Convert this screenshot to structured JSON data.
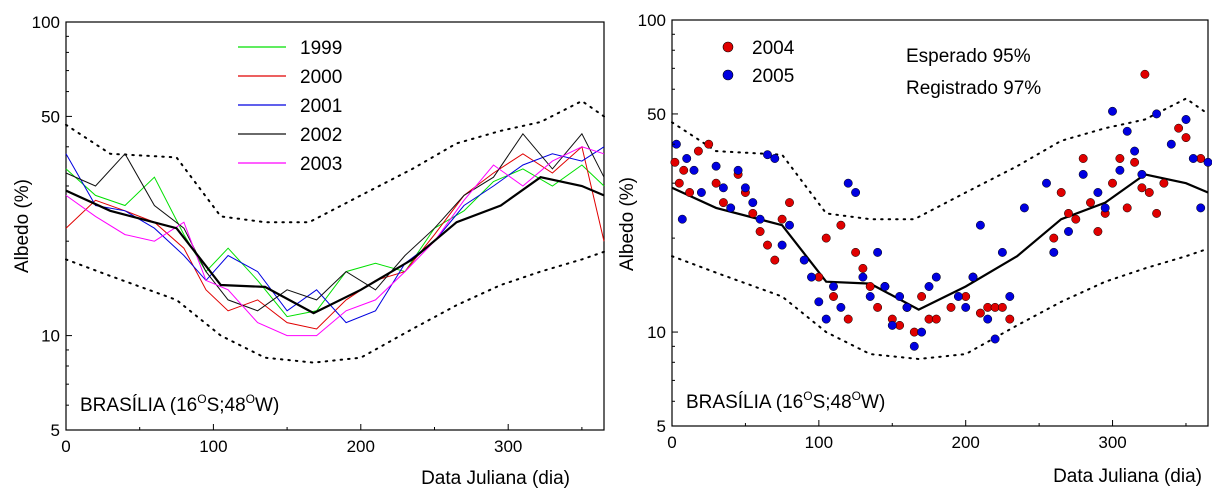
{
  "chart_data": [
    {
      "type": "line",
      "xlabel": "Data Juliana (dia)",
      "ylabel": "Albedo (%)",
      "xlim": [
        0,
        365
      ],
      "ylim": [
        5,
        100
      ],
      "yscale": "log",
      "xticks": [
        0,
        100,
        200,
        300
      ],
      "yticks": [
        5,
        10,
        50,
        100
      ],
      "annotation": {
        "prefix": "BRASÍLIA (16",
        "s1": "O",
        "mid": "S;48",
        "s2": "O",
        "suffix": "W)"
      },
      "legend_position": "top-center",
      "mean_curve": {
        "x": [
          0,
          30,
          75,
          105,
          135,
          168,
          200,
          235,
          265,
          295,
          322,
          350,
          365
        ],
        "y": [
          29,
          25,
          22,
          14.5,
          14.3,
          11.8,
          14,
          17.5,
          23,
          26,
          32,
          30,
          28
        ]
      },
      "envelope_upper": {
        "x": [
          0,
          30,
          75,
          105,
          135,
          165,
          200,
          235,
          265,
          295,
          322,
          350,
          365
        ],
        "y": [
          47,
          38,
          37,
          24,
          23,
          23,
          28,
          34,
          41,
          45,
          48,
          56,
          50
        ]
      },
      "envelope_lower": {
        "x": [
          0,
          30,
          75,
          105,
          135,
          168,
          200,
          235,
          265,
          295,
          322,
          350,
          365
        ],
        "y": [
          17.5,
          15.5,
          13,
          10,
          8.5,
          8.2,
          8.5,
          10.5,
          12.5,
          14.5,
          16,
          17.5,
          18.5
        ]
      },
      "series": [
        {
          "name": "1999",
          "color": "#00e000",
          "x": [
            0,
            20,
            40,
            60,
            80,
            95,
            110,
            130,
            150,
            170,
            190,
            210,
            230,
            250,
            270,
            290,
            310,
            330,
            350,
            365
          ],
          "y": [
            34,
            28,
            26,
            32,
            21,
            16,
            19,
            15,
            11.5,
            12,
            16,
            17,
            16,
            22,
            25,
            31,
            34,
            30,
            35,
            30
          ]
        },
        {
          "name": "2000",
          "color": "#e00000",
          "x": [
            0,
            20,
            40,
            60,
            80,
            95,
            110,
            130,
            150,
            170,
            190,
            210,
            230,
            250,
            270,
            290,
            310,
            330,
            350,
            365
          ],
          "y": [
            22,
            27,
            25,
            23,
            19,
            14,
            12,
            13,
            11,
            10.5,
            13,
            15,
            16,
            21,
            28,
            33,
            38,
            33,
            40,
            20
          ]
        },
        {
          "name": "2001",
          "color": "#0000e0",
          "x": [
            0,
            20,
            40,
            60,
            80,
            95,
            110,
            130,
            150,
            170,
            190,
            210,
            230,
            250,
            270,
            290,
            310,
            330,
            350,
            365
          ],
          "y": [
            38,
            26,
            25,
            22,
            18,
            15,
            18,
            16,
            12,
            14,
            11,
            12,
            17,
            20,
            26,
            30,
            35,
            38,
            36,
            40
          ]
        },
        {
          "name": "2002",
          "color": "#101010",
          "x": [
            0,
            20,
            40,
            60,
            80,
            95,
            110,
            130,
            150,
            170,
            190,
            210,
            230,
            250,
            270,
            290,
            310,
            330,
            350,
            365
          ],
          "y": [
            33,
            30,
            38,
            26,
            22,
            16,
            13,
            12,
            14,
            13,
            16,
            14,
            18,
            22,
            28,
            32,
            44,
            34,
            44,
            32
          ]
        },
        {
          "name": "2003",
          "color": "#ff00ff",
          "x": [
            0,
            20,
            40,
            60,
            80,
            95,
            110,
            130,
            150,
            170,
            190,
            210,
            230,
            250,
            270,
            290,
            310,
            330,
            350,
            365
          ],
          "y": [
            28,
            24,
            21,
            20,
            23,
            15,
            14,
            11,
            10,
            10,
            12,
            13,
            16,
            20,
            27,
            35,
            30,
            36,
            40,
            38
          ]
        }
      ]
    },
    {
      "type": "scatter",
      "xlabel": "Data Juliana (dia)",
      "ylabel": "Albedo (%)",
      "xlim": [
        0,
        365
      ],
      "ylim": [
        5,
        100
      ],
      "yscale": "log",
      "xticks": [
        0,
        100,
        200,
        300
      ],
      "yticks": [
        5,
        10,
        50,
        100
      ],
      "annotation": {
        "prefix": "BRASÍLIA (16",
        "s1": "O",
        "mid": "S;48",
        "s2": "O",
        "suffix": "W)"
      },
      "text_annotations": [
        "Esperado 95%",
        "Registrado 97%"
      ],
      "legend_position": "top-left",
      "mean_curve": {
        "x": [
          0,
          30,
          75,
          105,
          135,
          168,
          200,
          235,
          265,
          295,
          322,
          350,
          365
        ],
        "y": [
          29,
          25,
          22,
          14.5,
          14.3,
          11.8,
          14,
          17.5,
          23,
          26,
          32,
          30,
          28
        ]
      },
      "envelope_upper": {
        "x": [
          0,
          30,
          75,
          105,
          135,
          165,
          200,
          235,
          265,
          295,
          322,
          350,
          365
        ],
        "y": [
          47,
          38,
          37,
          24,
          23,
          23,
          28,
          34,
          41,
          45,
          48,
          56,
          50
        ]
      },
      "envelope_lower": {
        "x": [
          0,
          30,
          75,
          105,
          135,
          168,
          200,
          235,
          265,
          295,
          322,
          350,
          365
        ],
        "y": [
          17.5,
          15.5,
          13,
          10,
          8.5,
          8.2,
          8.5,
          10.5,
          12.5,
          14.5,
          16,
          17.5,
          18.5
        ]
      },
      "series": [
        {
          "name": "2004",
          "color": "#e00000",
          "x": [
            2,
            5,
            8,
            12,
            18,
            25,
            30,
            35,
            45,
            50,
            55,
            60,
            65,
            70,
            75,
            80,
            100,
            105,
            110,
            115,
            120,
            125,
            130,
            135,
            140,
            145,
            150,
            155,
            160,
            165,
            170,
            175,
            180,
            190,
            200,
            205,
            210,
            215,
            220,
            225,
            230,
            260,
            265,
            270,
            275,
            280,
            285,
            290,
            295,
            300,
            305,
            310,
            315,
            320,
            322,
            325,
            330,
            335,
            345,
            350,
            360
          ],
          "y": [
            35,
            30,
            33,
            28,
            38,
            40,
            30,
            26,
            32,
            28,
            24,
            21,
            19,
            17,
            23,
            26,
            15,
            20,
            13,
            22,
            11,
            18,
            16,
            14,
            12,
            14,
            11,
            10.5,
            12,
            10,
            13,
            11,
            11,
            12,
            13,
            15,
            11.5,
            12,
            12,
            12,
            11,
            20,
            28,
            24,
            23,
            36,
            26,
            21,
            24,
            30,
            36,
            25,
            35,
            29,
            67,
            28,
            24,
            30,
            45,
            42,
            36
          ]
        },
        {
          "name": "2005",
          "color": "#0000e0",
          "x": [
            3,
            7,
            10,
            15,
            20,
            30,
            35,
            40,
            45,
            50,
            55,
            60,
            65,
            70,
            75,
            80,
            90,
            95,
            100,
            105,
            110,
            115,
            120,
            125,
            130,
            135,
            140,
            145,
            150,
            155,
            160,
            165,
            170,
            175,
            180,
            195,
            200,
            205,
            210,
            215,
            220,
            225,
            230,
            240,
            255,
            260,
            270,
            280,
            290,
            295,
            300,
            305,
            310,
            315,
            320,
            330,
            340,
            350,
            355,
            360,
            365
          ],
          "y": [
            40,
            23,
            36,
            33,
            28,
            34,
            29,
            25,
            33,
            29,
            26,
            23,
            37,
            36,
            19,
            22,
            17,
            15,
            12.5,
            11,
            14,
            12,
            30,
            28,
            15,
            13,
            18,
            14,
            10.5,
            13,
            12,
            9,
            10,
            14,
            15,
            13,
            12,
            15,
            22,
            11,
            9.5,
            18,
            13,
            25,
            30,
            18,
            21,
            32,
            28,
            25,
            51,
            33,
            44,
            38,
            32,
            50,
            40,
            48,
            36,
            25,
            35
          ]
        }
      ]
    }
  ]
}
